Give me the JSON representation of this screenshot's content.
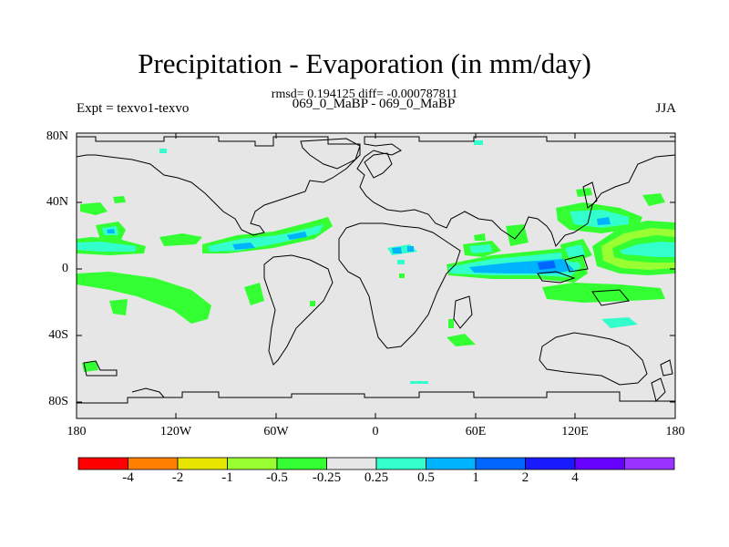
{
  "title": "Precipitation - Evaporation (in mm/day)",
  "stats": "rmsd= 0.194125 diff= -0.000787811",
  "left_label": "Expt = texvo1-texvo",
  "center_label": "069_0_MaBP - 069_0_MaBP",
  "right_label": "JJA",
  "map": {
    "lat_ticks": [
      "80N",
      "40N",
      "0",
      "40S",
      "80S"
    ],
    "lon_ticks": [
      "180",
      "120W",
      "60W",
      "0",
      "60E",
      "120E",
      "180"
    ],
    "background_color": "#e6e6e6"
  },
  "colorbar": {
    "colors": [
      "#ff0000",
      "#ff8000",
      "#e6e600",
      "#99ff33",
      "#33ff33",
      "#e6e6e6",
      "#33ffcc",
      "#00b3ff",
      "#0066ff",
      "#1a1aff",
      "#6600ff",
      "#9933ff"
    ],
    "labels": [
      "-4",
      "-2",
      "-1",
      "-0.5",
      "-0.25",
      "0.25",
      "0.5",
      "1",
      "2",
      "4"
    ]
  },
  "colors": {
    "dry_light": "#33ff33",
    "dry": "#99ff33",
    "wet_light": "#33ffcc",
    "wet": "#00b3ff",
    "wet_strong": "#0066ff"
  }
}
